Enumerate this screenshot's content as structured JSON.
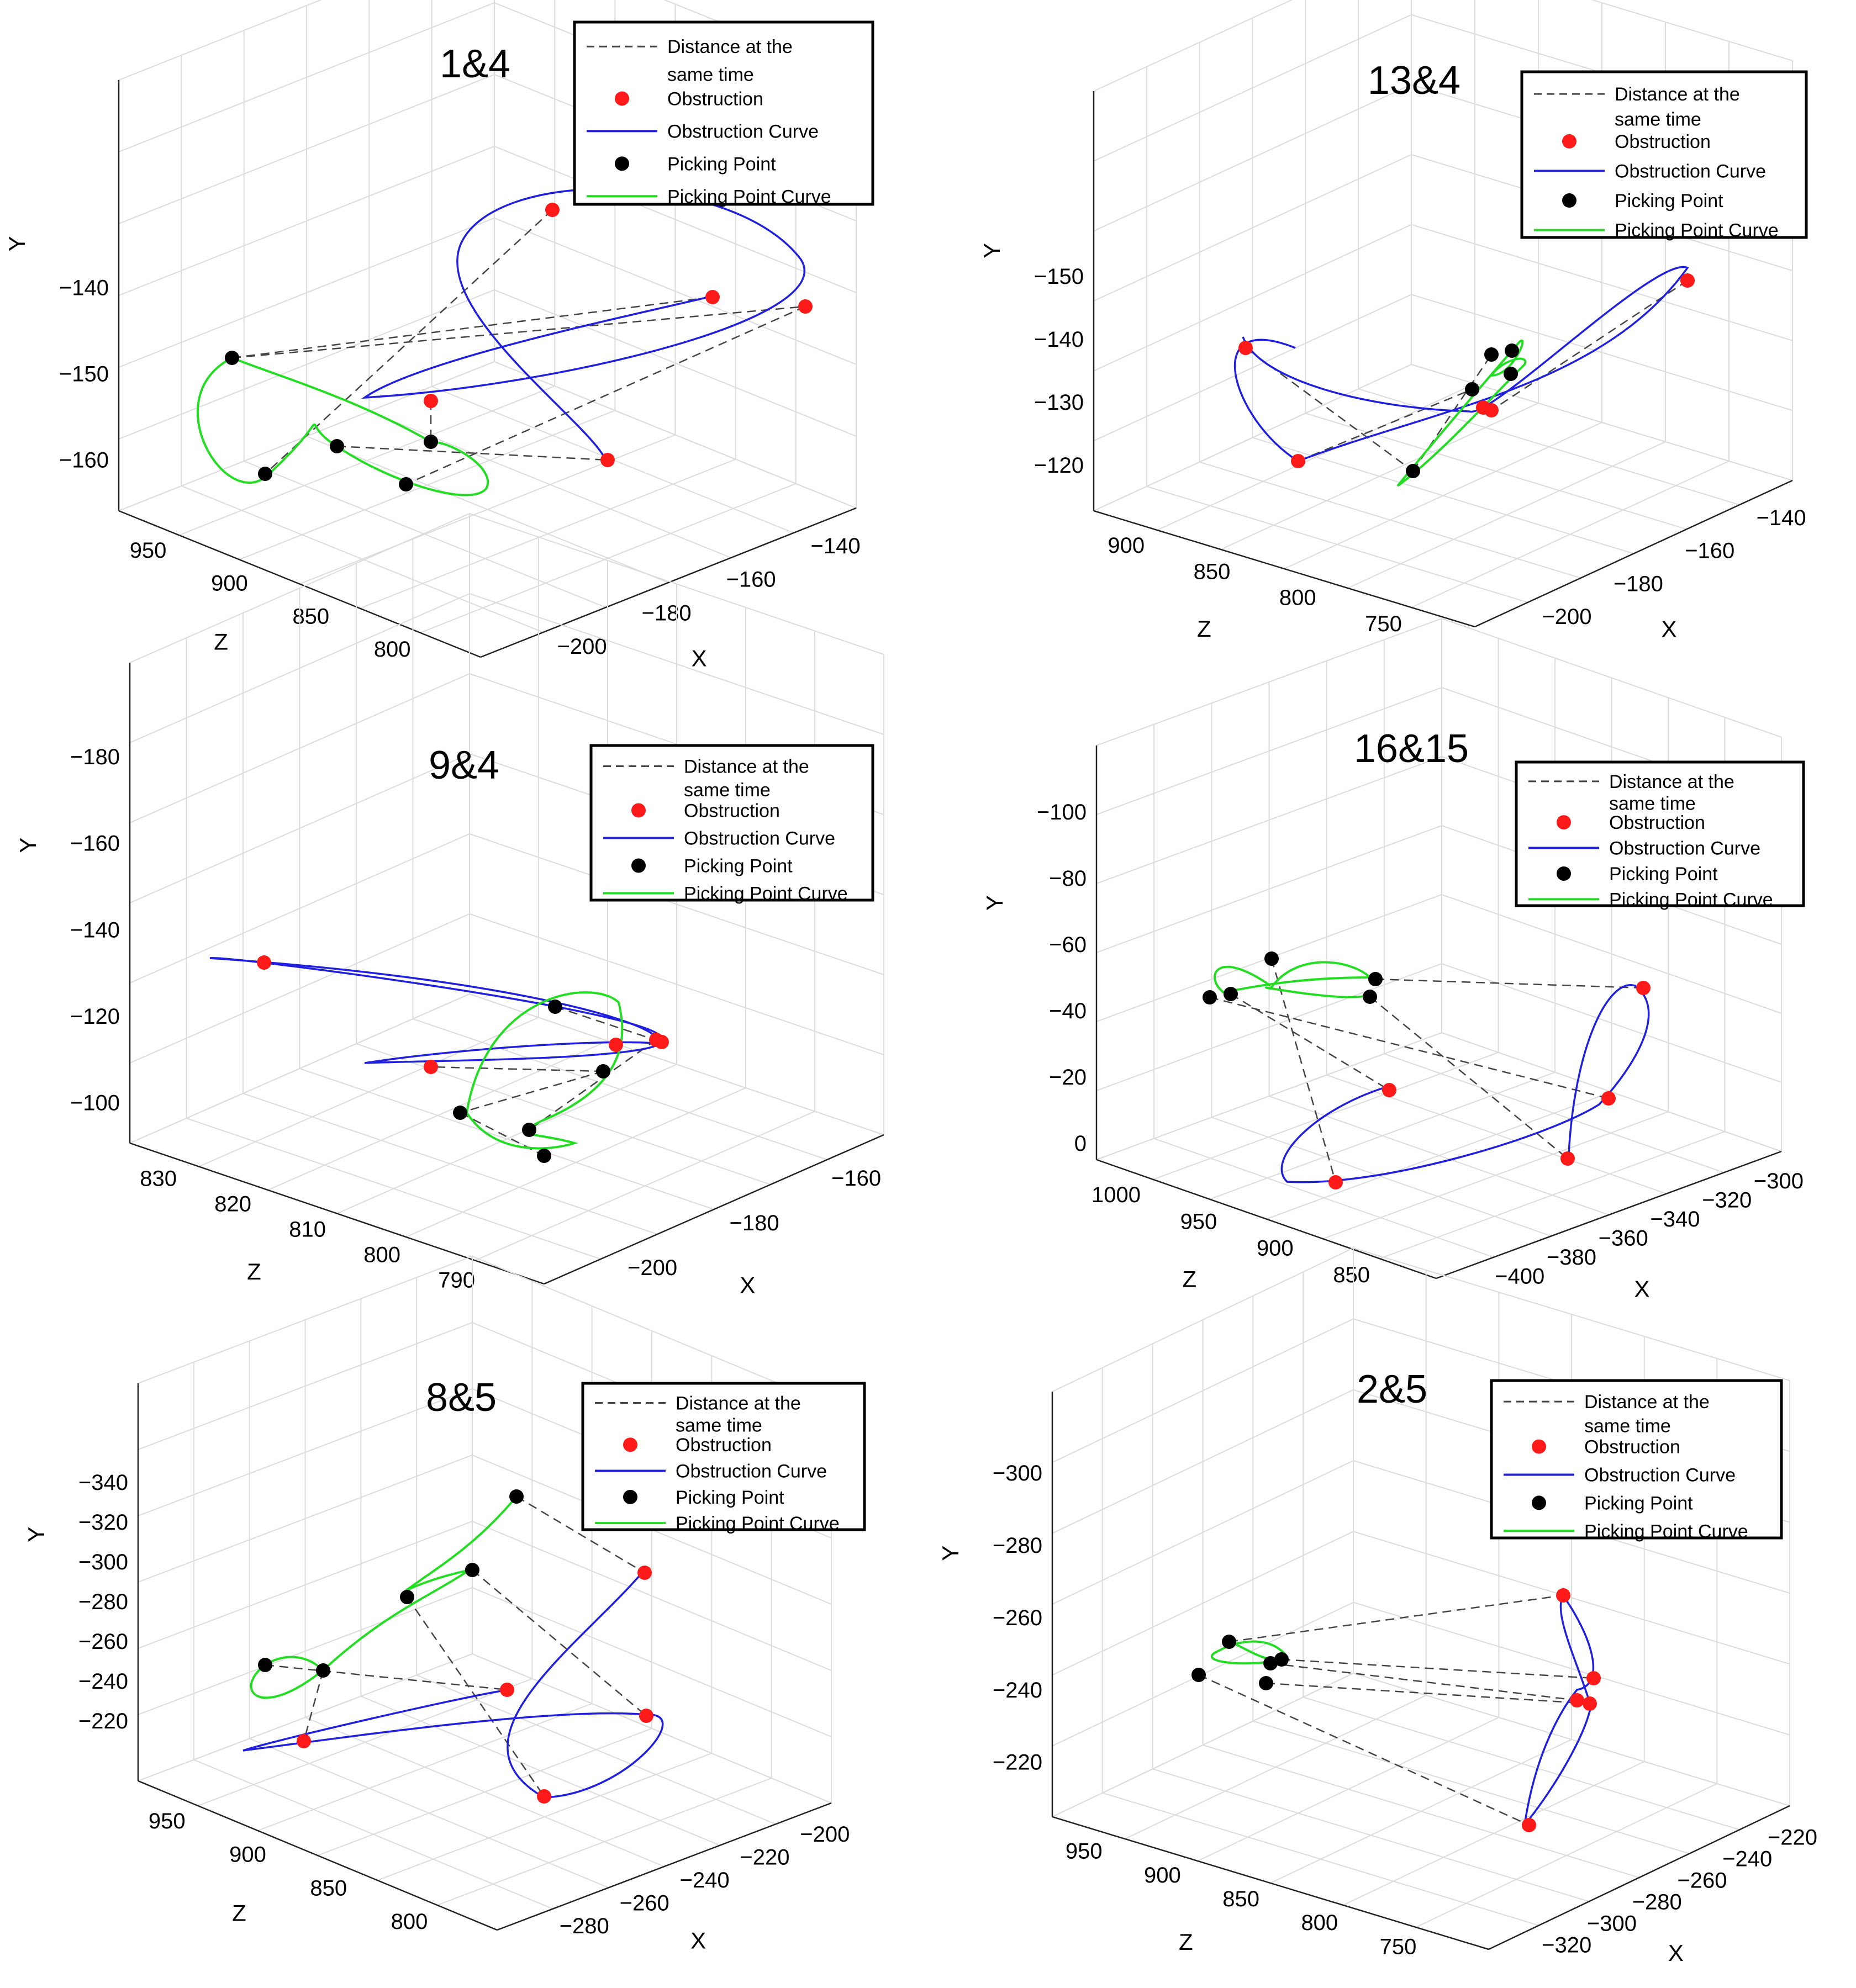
{
  "legend": {
    "items": [
      {
        "label": "Distance at the same time",
        "style": "dashed",
        "color": "#444444"
      },
      {
        "label": "Obstruction",
        "style": "dot",
        "color": "#ff1a1a"
      },
      {
        "label": "Obstruction Curve",
        "style": "line",
        "color": "#1f1fdd"
      },
      {
        "label": "Picking Point",
        "style": "dot",
        "color": "#000000"
      },
      {
        "label": "Picking Point Curve",
        "style": "line",
        "color": "#22dd22"
      }
    ]
  },
  "colors": {
    "obstruction": "#ff1a1a",
    "obstruction_curve": "#1f1fdd",
    "picking": "#000000",
    "picking_curve": "#22dd22",
    "distance": "#444444",
    "grid": "#dcdcdc"
  },
  "chart_data": [
    {
      "type": "scatter3d",
      "title": "1&4",
      "xlabel": "X",
      "ylabel": "Y",
      "zlabel": "Z",
      "xticks": [
        "−140",
        "−160",
        "−180",
        "−200"
      ],
      "yticks": [
        "−140",
        "−150",
        "−160"
      ],
      "zticks": [
        "950",
        "900",
        "850",
        "800"
      ],
      "xlim": [
        -200,
        -130
      ],
      "ylim": [
        -165,
        -133
      ],
      "zlim": [
        790,
        960
      ],
      "grid": true,
      "legend_position": "top-right",
      "series": [
        {
          "name": "Obstruction",
          "points": [
            [
              -147,
              -137,
              820
            ],
            [
              -142,
              -145,
              826
            ],
            [
              -168,
              -140,
              860
            ],
            [
              -160,
              -151,
              868
            ],
            [
              -170,
              -159,
              812
            ]
          ]
        },
        {
          "name": "Picking Point",
          "points": [
            [
              -172,
              -148,
              933
            ],
            [
              -192,
              -160,
              912
            ],
            [
              -184,
              -160,
              885
            ],
            [
              -168,
              -157,
              868
            ],
            [
              -180,
              -163,
              860
            ]
          ]
        }
      ]
    },
    {
      "type": "scatter3d",
      "title": "13&4",
      "xlabel": "X",
      "ylabel": "Y",
      "zlabel": "Z",
      "xticks": [
        "−140",
        "−160",
        "−180",
        "−200"
      ],
      "yticks": [
        "−120",
        "−130",
        "−140",
        "−150"
      ],
      "zticks": [
        "900",
        "850",
        "800",
        "750"
      ],
      "xlim": [
        -200,
        -135
      ],
      "ylim": [
        -156,
        -117
      ],
      "zlim": [
        745,
        905
      ],
      "grid": true,
      "legend_position": "top-right",
      "series": [
        {
          "name": "Obstruction",
          "points": [
            [
              -192,
              -132,
              875
            ],
            [
              -195,
              -152,
              860
            ],
            [
              -172,
              -142,
              795
            ],
            [
              -170,
              -141,
              793
            ],
            [
              -140,
              -132,
              770
            ]
          ]
        },
        {
          "name": "Picking Point",
          "points": [
            [
              -182,
              -147,
              830
            ],
            [
              -172,
              -140,
              805
            ],
            [
              -168,
              -136,
              800
            ],
            [
              -166,
              -136,
              792
            ],
            [
              -168,
              -139,
              790
            ]
          ]
        }
      ]
    },
    {
      "type": "scatter3d",
      "title": "9&4",
      "xlabel": "X",
      "ylabel": "Y",
      "zlabel": "Z",
      "xticks": [
        "−160",
        "−180",
        "−200"
      ],
      "yticks": [
        "−100",
        "−120",
        "−140",
        "−160",
        "−180"
      ],
      "zticks": [
        "830",
        "820",
        "810",
        "800",
        "790"
      ],
      "xlim": [
        -205,
        -150
      ],
      "ylim": [
        -185,
        -95
      ],
      "zlim": [
        788,
        835
      ],
      "grid": true,
      "legend_position": "top-right",
      "series": [
        {
          "name": "Obstruction",
          "points": [
            [
              -200,
              -112,
              822
            ],
            [
              -165,
              -142,
              800
            ],
            [
              -168,
              -141,
              800
            ],
            [
              -170,
              -143,
              803
            ],
            [
              -190,
              -150,
              812
            ]
          ]
        },
        {
          "name": "Picking Point",
          "points": [
            [
              -175,
              -129,
              805
            ],
            [
              -178,
              -150,
              802
            ],
            [
              -188,
              -162,
              808
            ],
            [
              -192,
              -175,
              804
            ],
            [
              -195,
              -182,
              805
            ]
          ]
        }
      ]
    },
    {
      "type": "scatter3d",
      "title": "16&15",
      "xlabel": "X",
      "ylabel": "Y",
      "zlabel": "Z",
      "xticks": [
        "−300",
        "−320",
        "−340",
        "−360",
        "−380",
        "−400"
      ],
      "yticks": [
        "0",
        "−20",
        "−40",
        "−60",
        "−80",
        "−100"
      ],
      "zticks": [
        "1000",
        "950",
        "900",
        "850"
      ],
      "xlim": [
        -405,
        -295
      ],
      "ylim": [
        -105,
        5
      ],
      "zlim": [
        830,
        1010
      ],
      "grid": true,
      "legend_position": "top-right",
      "series": [
        {
          "name": "Obstruction",
          "points": [
            [
              -325,
              -37,
              870
            ],
            [
              -330,
              -78,
              870
            ],
            [
              -345,
              -98,
              860
            ],
            [
              -365,
              -75,
              905
            ],
            [
              -395,
              -98,
              900
            ]
          ]
        },
        {
          "name": "Picking Point",
          "points": [
            [
              -360,
              -35,
              925
            ],
            [
              -362,
              -40,
              925
            ],
            [
              -380,
              -26,
              955
            ],
            [
              -385,
              -39,
              960
            ],
            [
              -390,
              -40,
              970
            ]
          ]
        }
      ]
    },
    {
      "type": "scatter3d",
      "title": "8&5",
      "xlabel": "X",
      "ylabel": "Y",
      "zlabel": "Z",
      "xticks": [
        "−200",
        "−220",
        "−240",
        "−260",
        "−280"
      ],
      "yticks": [
        "−220",
        "−240",
        "−260",
        "−280",
        "−300",
        "−320",
        "−340"
      ],
      "zticks": [
        "950",
        "900",
        "850",
        "800"
      ],
      "xlim": [
        -285,
        -195
      ],
      "ylim": [
        -345,
        -210
      ],
      "zlim": [
        790,
        960
      ],
      "grid": true,
      "legend_position": "top-right",
      "series": [
        {
          "name": "Obstruction",
          "points": [
            [
              -205,
              -240,
              830
            ],
            [
              -215,
              -305,
              820
            ],
            [
              -230,
              -295,
              855
            ],
            [
              -250,
              -345,
              820
            ],
            [
              -270,
              -315,
              905
            ]
          ]
        },
        {
          "name": "Picking Point",
          "points": [
            [
              -215,
              -220,
              860
            ],
            [
              -230,
              -235,
              875
            ],
            [
              -245,
              -250,
              890
            ],
            [
              -260,
              -285,
              905
            ],
            [
              -265,
              -280,
              920
            ]
          ]
        }
      ]
    },
    {
      "type": "scatter3d",
      "title": "2&5",
      "xlabel": "X",
      "ylabel": "Y",
      "zlabel": "Z",
      "xticks": [
        "−220",
        "−240",
        "−260",
        "−280",
        "−300",
        "−320"
      ],
      "yticks": [
        "−220",
        "−240",
        "−260",
        "−280",
        "−300"
      ],
      "zticks": [
        "950",
        "900",
        "850",
        "800",
        "750"
      ],
      "xlim": [
        -325,
        -215
      ],
      "ylim": [
        -305,
        -215
      ],
      "zlim": [
        745,
        960
      ],
      "grid": true,
      "legend_position": "top-right",
      "series": [
        {
          "name": "Obstruction",
          "points": [
            [
              -240,
              -232,
              780
            ],
            [
              -245,
              -260,
              775
            ],
            [
              -248,
              -265,
              780
            ],
            [
              -250,
              -268,
              778
            ],
            [
              -280,
              -300,
              790
            ]
          ]
        },
        {
          "name": "Picking Point",
          "points": [
            [
              -300,
              -248,
              905
            ],
            [
              -295,
              -256,
              890
            ],
            [
              -298,
              -255,
              885
            ],
            [
              -302,
              -262,
              895
            ],
            [
              -310,
              -260,
              915
            ]
          ]
        }
      ]
    }
  ]
}
